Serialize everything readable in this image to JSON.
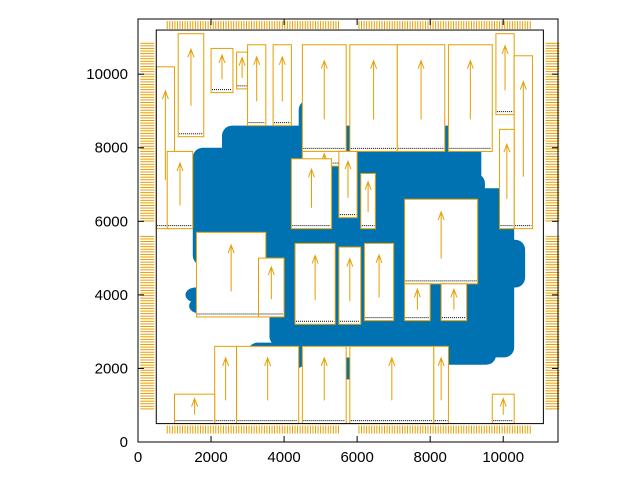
{
  "chart_data": {
    "type": "scatter",
    "title": "",
    "xlabel": "",
    "ylabel": "",
    "xlim": [
      0,
      11500
    ],
    "ylim": [
      0,
      11500
    ],
    "xticks": [
      0,
      2000,
      4000,
      6000,
      8000,
      10000
    ],
    "yticks": [
      0,
      2000,
      4000,
      6000,
      8000,
      10000
    ],
    "xtick_labels": [
      "0",
      "2000",
      "4000",
      "6000",
      "8000",
      "10000"
    ],
    "ytick_labels": [
      "0",
      "2000",
      "4000",
      "6000",
      "8000",
      "10000"
    ],
    "grid": false,
    "legend": "none",
    "colors": {
      "cells": "#0072b2",
      "macros": "#e69f00",
      "pins": "#000000",
      "frame": "#000000"
    },
    "die_area": [
      500,
      500,
      11100,
      11200
    ],
    "cell_cloud": [
      [
        1500,
        4800,
        6500,
        7600
      ],
      [
        3600,
        2600,
        9400,
        8600
      ],
      [
        7200,
        2300,
        10300,
        6900
      ],
      [
        1400,
        3500,
        5200,
        3900
      ],
      [
        1500,
        6500,
        2800,
        8000
      ],
      [
        6000,
        5700,
        9000,
        6000
      ],
      [
        4400,
        7000,
        5600,
        9300
      ],
      [
        6800,
        2100,
        9800,
        2600
      ],
      [
        8800,
        4200,
        10600,
        5500
      ],
      [
        1300,
        3800,
        2000,
        4200
      ],
      [
        3000,
        2000,
        4600,
        2700
      ],
      [
        5200,
        1700,
        6000,
        2300
      ],
      [
        2300,
        7400,
        4000,
        8600
      ],
      [
        8000,
        6200,
        9500,
        7300
      ]
    ],
    "macros": [
      [
        1100,
        8300,
        1800,
        11100
      ],
      [
        2000,
        9500,
        2600,
        10700
      ],
      [
        2700,
        9600,
        3000,
        10600
      ],
      [
        3000,
        8600,
        3500,
        10800
      ],
      [
        3700,
        8600,
        4200,
        10800
      ],
      [
        4500,
        7900,
        5700,
        10800
      ],
      [
        5800,
        7900,
        7100,
        10800
      ],
      [
        7100,
        7900,
        8400,
        10800
      ],
      [
        8500,
        7900,
        9700,
        10800
      ],
      [
        9800,
        8900,
        10300,
        11100
      ],
      [
        500,
        5800,
        1000,
        10200
      ],
      [
        10300,
        5800,
        10800,
        10500
      ],
      [
        4500,
        7500,
        5700,
        7900
      ],
      [
        5500,
        6100,
        6000,
        7900
      ],
      [
        6100,
        5800,
        6500,
        7300
      ],
      [
        4200,
        5800,
        5300,
        7700
      ],
      [
        1600,
        3400,
        3500,
        5700
      ],
      [
        3300,
        3400,
        4000,
        5000
      ],
      [
        4300,
        3200,
        5400,
        5400
      ],
      [
        5500,
        3200,
        6100,
        5300
      ],
      [
        6200,
        3300,
        7000,
        5400
      ],
      [
        7300,
        4300,
        9300,
        6600
      ],
      [
        7300,
        3300,
        8000,
        4300
      ],
      [
        8300,
        3300,
        9000,
        4300
      ],
      [
        2100,
        500,
        2700,
        2600
      ],
      [
        2700,
        500,
        4400,
        2600
      ],
      [
        4500,
        500,
        5700,
        2600
      ],
      [
        5800,
        500,
        8100,
        2600
      ],
      [
        8100,
        500,
        8500,
        2600
      ],
      [
        1000,
        500,
        2100,
        1300
      ],
      [
        9700,
        500,
        10300,
        1300
      ],
      [
        800,
        5800,
        1500,
        7900
      ],
      [
        9900,
        5800,
        10300,
        8500
      ]
    ],
    "pin_rows": [
      [
        3,
        0,
        11500,
        400,
        11100
      ],
      [
        3,
        0,
        11500,
        11300,
        11400
      ],
      [
        3,
        1,
        11500,
        800,
        11000
      ],
      [
        3,
        1,
        11500,
        500,
        10700
      ]
    ]
  }
}
